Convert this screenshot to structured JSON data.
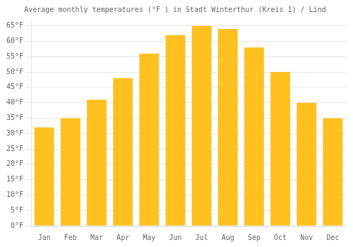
{
  "chart_data": {
    "type": "bar",
    "title": "Average monthly temperatures (°F ) in Stadt Winterthur (Kreis 1) / Lind",
    "categories": [
      "Jan",
      "Feb",
      "Mar",
      "Apr",
      "May",
      "Jun",
      "Jul",
      "Aug",
      "Sep",
      "Oct",
      "Nov",
      "Dec"
    ],
    "values": [
      32,
      35,
      41,
      48,
      56,
      62,
      65,
      64,
      58,
      50,
      40,
      35
    ],
    "color": "#FFC020",
    "ylim": [
      0,
      67
    ],
    "yticks": [
      {
        "value": 0,
        "label": "0°F"
      },
      {
        "value": 5,
        "label": "5°F"
      },
      {
        "value": 10,
        "label": "10°F"
      },
      {
        "value": 15,
        "label": "15°F"
      },
      {
        "value": 20,
        "label": "20°F"
      },
      {
        "value": 25,
        "label": "25°F"
      },
      {
        "value": 30,
        "label": "30°F"
      },
      {
        "value": 35,
        "label": "35°F"
      },
      {
        "value": 40,
        "label": "40°F"
      },
      {
        "value": 45,
        "label": "45°F"
      },
      {
        "value": 50,
        "label": "50°F"
      },
      {
        "value": 55,
        "label": "55°F"
      },
      {
        "value": 60,
        "label": "60°F"
      },
      {
        "value": 65,
        "label": "65°F"
      }
    ],
    "grid": true
  }
}
